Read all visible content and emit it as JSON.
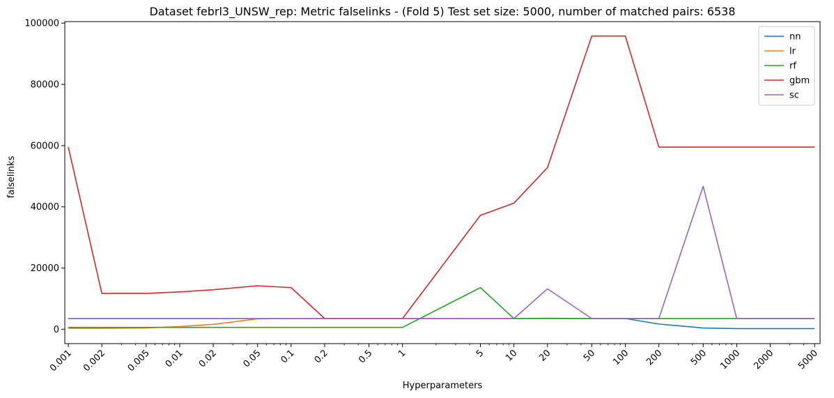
{
  "chart_data": {
    "type": "line",
    "title": "Dataset febrl3_UNSW_rep: Metric falselinks - (Fold 5) Test set size: 5000, number of matched pairs: 6538",
    "xlabel": "Hyperparameters",
    "ylabel": "falselinks",
    "x_scale": "log",
    "x": [
      0.001,
      0.002,
      0.005,
      0.01,
      0.02,
      0.05,
      0.1,
      0.2,
      0.5,
      1,
      5,
      10,
      20,
      50,
      100,
      200,
      500,
      1000,
      2000,
      5000
    ],
    "x_tick_labels": [
      "0.001",
      "0.002",
      "0.005",
      "0.01",
      "0.02",
      "0.05",
      "0.1",
      "0.2",
      "0.5",
      "1",
      "5",
      "10",
      "20",
      "50",
      "100",
      "200",
      "500",
      "1000",
      "2000",
      "5000"
    ],
    "xlim": [
      0.00093,
      5600
    ],
    "ylim": [
      -4700,
      100500
    ],
    "y_ticks": [
      0,
      20000,
      40000,
      60000,
      80000,
      100000
    ],
    "legend_position": "top-right",
    "grid": false,
    "series": [
      {
        "name": "nn",
        "color": "#1f77b4",
        "values": [
          3500,
          3500,
          3500,
          3500,
          3500,
          3500,
          3500,
          3500,
          3500,
          3500,
          3500,
          3500,
          3500,
          3500,
          3500,
          1700,
          400,
          200,
          200,
          200
        ]
      },
      {
        "name": "lr",
        "color": "#ff7f0e",
        "values": [
          300,
          300,
          400,
          900,
          1600,
          3400,
          3500,
          3500,
          3500,
          3500,
          3500,
          3500,
          3500,
          3500,
          3500,
          3500,
          3500,
          3500,
          3500,
          3500
        ]
      },
      {
        "name": "rf",
        "color": "#2ca02c",
        "values": [
          600,
          600,
          600,
          600,
          600,
          600,
          600,
          600,
          600,
          600,
          13600,
          3500,
          3600,
          3500,
          3500,
          3500,
          3500,
          3500,
          3500,
          3500
        ]
      },
      {
        "name": "gbm",
        "color": "#d62728",
        "values": [
          59500,
          11700,
          11700,
          12200,
          12900,
          14200,
          13600,
          3500,
          3500,
          3500,
          37200,
          41200,
          52800,
          95800,
          95800,
          59500,
          59500,
          59500,
          59500,
          59500
        ]
      },
      {
        "name": "sc",
        "color": "#9467bd",
        "values": [
          3500,
          3500,
          3500,
          3500,
          3500,
          3500,
          3500,
          3500,
          3500,
          3500,
          3500,
          3500,
          13200,
          3500,
          3500,
          3500,
          46700,
          3500,
          3500,
          3500
        ]
      }
    ]
  }
}
